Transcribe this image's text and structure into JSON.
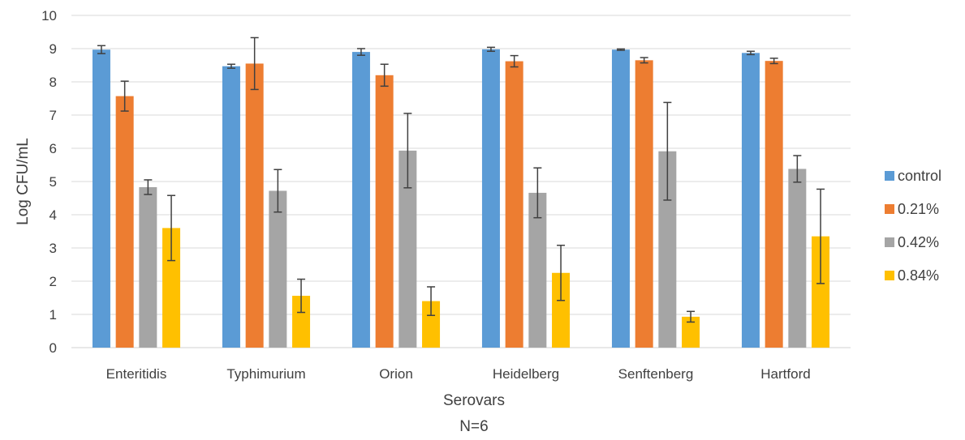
{
  "chart_data": {
    "type": "bar",
    "title": "",
    "xlabel": "Serovars",
    "xlabel_note": "N=6",
    "ylabel": "Log CFU/mL",
    "ylim": [
      0,
      10
    ],
    "yticks": [
      0,
      1,
      2,
      3,
      4,
      5,
      6,
      7,
      8,
      9,
      10
    ],
    "grid": true,
    "legend_position": "right",
    "categories": [
      "Enteritidis",
      "Typhimurium",
      "Orion",
      "Heidelberg",
      "Senftenberg",
      "Hartford"
    ],
    "series": [
      {
        "name": "control",
        "color": "#5B9BD5",
        "values": [
          8.97,
          8.47,
          8.9,
          8.98,
          8.97,
          8.87
        ],
        "errors": [
          0.12,
          0.06,
          0.1,
          0.06,
          0.02,
          0.05
        ]
      },
      {
        "name": "0.21%",
        "color": "#ED7D31",
        "values": [
          7.57,
          8.55,
          8.2,
          8.62,
          8.65,
          8.63
        ],
        "errors": [
          0.45,
          0.78,
          0.33,
          0.17,
          0.08,
          0.08
        ]
      },
      {
        "name": "0.42%",
        "color": "#A5A5A5",
        "values": [
          4.83,
          4.72,
          5.93,
          4.66,
          5.91,
          5.38
        ],
        "errors": [
          0.22,
          0.64,
          1.12,
          0.75,
          1.47,
          0.4
        ]
      },
      {
        "name": "0.84%",
        "color": "#FFC000",
        "values": [
          3.6,
          1.56,
          1.4,
          2.25,
          0.93,
          3.35
        ],
        "errors": [
          0.98,
          0.5,
          0.43,
          0.83,
          0.16,
          1.42
        ]
      }
    ]
  }
}
